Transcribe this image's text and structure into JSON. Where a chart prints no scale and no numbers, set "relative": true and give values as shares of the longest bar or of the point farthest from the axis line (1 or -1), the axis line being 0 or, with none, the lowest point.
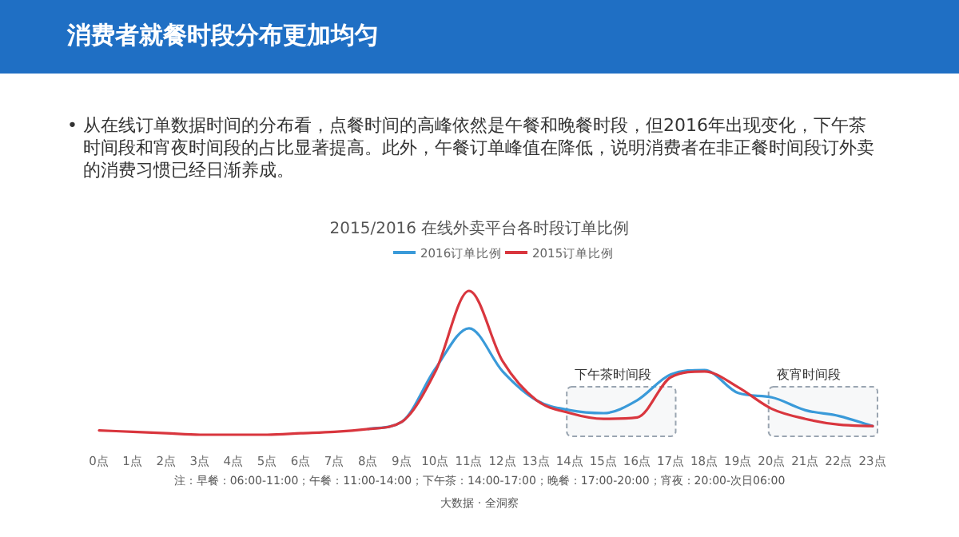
{
  "chart_data": {
    "type": "line",
    "title": "消费者就餐时段分布更加均匀",
    "subtitle": "2015/2016 在线外卖平台各时段订单比例",
    "relative": true,
    "legend": "top",
    "categories": [
      "0点",
      "1点",
      "2点",
      "3点",
      "4点",
      "5点",
      "6点",
      "7点",
      "8点",
      "9点",
      "10点",
      "11点",
      "12点",
      "13点",
      "14点",
      "15点",
      "16点",
      "17点",
      "18点",
      "19点",
      "20点",
      "21点",
      "22点",
      "23点"
    ],
    "series": [
      {
        "name": "2016订单比例",
        "color": "#3a9ad9",
        "values": [
          null,
          null,
          null,
          null,
          null,
          null,
          null,
          null,
          0.04,
          0.09,
          0.46,
          0.74,
          0.44,
          0.24,
          0.17,
          0.15,
          0.24,
          0.42,
          0.45,
          0.29,
          0.26,
          0.17,
          0.13,
          0.06
        ]
      },
      {
        "name": "2015订单比例",
        "color": "#d9363e",
        "values": [
          0.03,
          0.02,
          0.01,
          0,
          0,
          0,
          0.01,
          0.02,
          0.04,
          0.09,
          0.44,
          1,
          0.51,
          0.24,
          0.15,
          0.11,
          0.12,
          0.4,
          0.44,
          0.33,
          0.18,
          0.11,
          0.07,
          0.06
        ]
      }
    ],
    "bands": [
      {
        "axis": "x",
        "from": "14点",
        "to": "17点",
        "label": "下午茶时间段",
        "color": "#9aa5b1"
      },
      {
        "axis": "x",
        "from": "20点",
        "to": "23点",
        "label": "夜宵时间段",
        "color": "#9aa5b1"
      }
    ],
    "annotations": [
      "• 从在线订单数据时间的分布看，点餐时间的高峰依然是午餐和晚餐时段，但2016年出现变化，下午茶时间段和宵夜时间段的占比显著提高。此外，午餐订单峰值在降低，说明消费者在非正餐时间段订外卖的消费习惯已经日渐养成。",
      "注：早餐：06:00-11:00；午餐：11:00-14:00；下午茶：14:00-17:00；晚餐：17:00-20:00；宵夜：20:00-次日06:00",
      "大数据 · 全洞察"
    ]
  }
}
